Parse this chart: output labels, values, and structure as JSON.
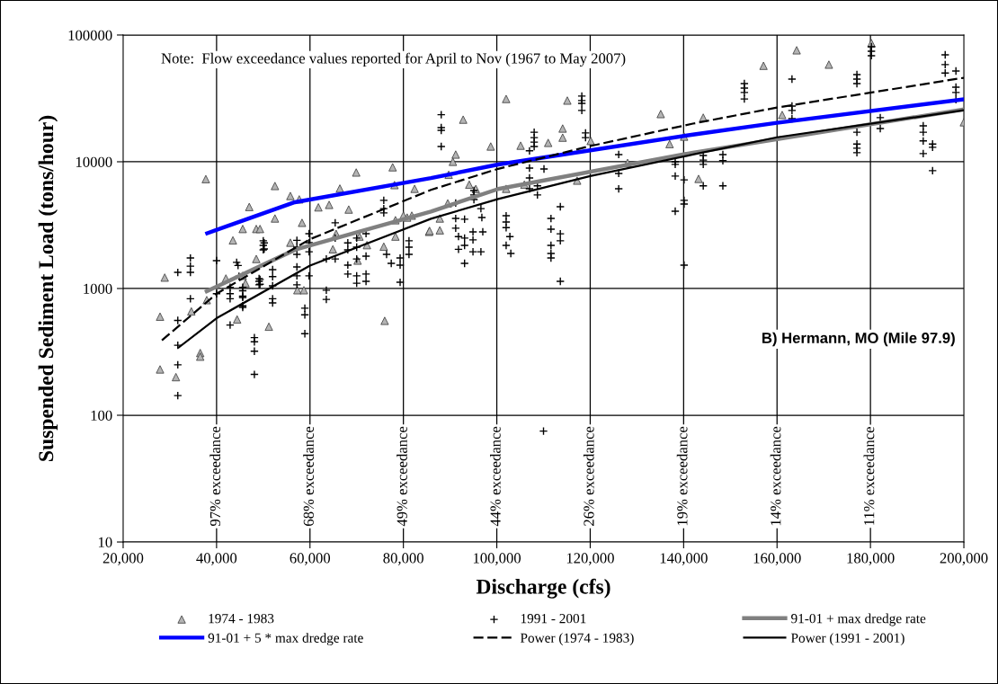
{
  "chart_data": {
    "type": "scatter",
    "xlabel": "Discharge (cfs)",
    "ylabel": "Suspended Sediment Load (tons/hour)",
    "log": "y",
    "grid": "y",
    "legend": "bottom",
    "xlim": [
      20000,
      200000
    ],
    "xticks": [
      {
        "value": 20000,
        "label": "20,000"
      },
      {
        "value": 40000,
        "label": "40,000"
      },
      {
        "value": 60000,
        "label": "60,000"
      },
      {
        "value": 80000,
        "label": "80,000"
      },
      {
        "value": 100000,
        "label": "100,000"
      },
      {
        "value": 120000,
        "label": "120,000"
      },
      {
        "value": 140000,
        "label": "140,000"
      },
      {
        "value": 160000,
        "label": "160,000"
      },
      {
        "value": 180000,
        "label": "180,000"
      },
      {
        "value": 200000,
        "label": "200,000"
      }
    ],
    "ylim": [
      10,
      100000
    ],
    "yticks": [
      10,
      100,
      1000,
      10000,
      100000
    ],
    "annotations": [
      "Note:  Flow exceedance values reported for April to Nov (1967 to May 2007)",
      "B) Hermann, MO (Mile 97.9)"
    ],
    "ref_lines": [
      {
        "axis": "x",
        "value": 40000,
        "label": "97% exceedance",
        "color": "#000000"
      },
      {
        "axis": "x",
        "value": 60000,
        "label": "68% exceedance",
        "color": "#000000"
      },
      {
        "axis": "x",
        "value": 80000,
        "label": "49% exceedance",
        "color": "#000000"
      },
      {
        "axis": "x",
        "value": 100000,
        "label": "44% exceedance",
        "color": "#000000"
      },
      {
        "axis": "x",
        "value": 120000,
        "label": "26% exceedance",
        "color": "#000000"
      },
      {
        "axis": "x",
        "value": 140000,
        "label": "19% exceedance",
        "color": "#000000"
      },
      {
        "axis": "x",
        "value": 160000,
        "label": "14% exceedance",
        "color": "#000000"
      },
      {
        "axis": "x",
        "value": 180000,
        "label": "11% exceedance",
        "color": "#000000"
      }
    ],
    "series": [
      {
        "name": "1974 - 1983",
        "marker": "triangle",
        "color": "#b4b4b4",
        "x": [
          37700,
          28900,
          27900,
          27900,
          31300,
          36500,
          36500,
          34600,
          37900,
          44400,
          47000,
          45600,
          43500,
          48500,
          49300,
          42000,
          48500,
          51200,
          52500,
          55800,
          57700,
          61800,
          64100,
          66400,
          69900,
          77700,
          78100,
          82400,
          68300,
          52500,
          58300,
          55800,
          65600,
          70600,
          72200,
          64900,
          70200,
          75800,
          78300,
          80000,
          81800,
          85500,
          57300,
          58700,
          76000,
          46200,
          45600,
          102000,
          115100,
          135100,
          92800,
          98700,
          105100,
          111000,
          114100,
          114100,
          120100,
          137000,
          140100,
          91200,
          90600,
          89700,
          94100,
          95500,
          102000,
          105900,
          117200,
          128000,
          89500,
          87800,
          85600,
          87800,
          80800,
          78300,
          164200,
          157100,
          171100,
          180200,
          144200,
          161100,
          143200,
          200000
        ],
        "values": [
          7300,
          1220,
          600,
          230,
          200,
          310,
          290,
          660,
          810,
          570,
          4400,
          2950,
          2400,
          2950,
          2950,
          1200,
          1710,
          500,
          6440,
          5370,
          5050,
          4370,
          4570,
          6150,
          8230,
          9050,
          6550,
          6120,
          4200,
          3570,
          3300,
          2300,
          2700,
          2570,
          2200,
          2040,
          1660,
          2140,
          3460,
          3760,
          3760,
          2800,
          970,
          970,
          556,
          1100,
          1260,
          31300,
          30400,
          23800,
          21500,
          13200,
          13400,
          14100,
          18300,
          15500,
          14600,
          13800,
          15800,
          11400,
          10000,
          7900,
          6600,
          6100,
          6120,
          6600,
          7100,
          9800,
          4700,
          3570,
          2850,
          2880,
          3630,
          2570,
          75800,
          57200,
          58400,
          86300,
          22300,
          23400,
          7330,
          20500
        ]
      },
      {
        "name": "1991 - 2001",
        "marker": "cross",
        "color": "#000000",
        "x": [
          31700,
          31700,
          31700,
          31700,
          31700,
          34400,
          34400,
          34400,
          34400,
          40000,
          42900,
          42900,
          42900,
          42900,
          44300,
          44600,
          45600,
          45600,
          45600,
          48100,
          48100,
          48100,
          48100,
          50200,
          50200,
          49300,
          49300,
          50000,
          50000,
          50000,
          40000,
          44800,
          45600,
          45600,
          45600,
          49100,
          49100,
          49100,
          52000,
          52000,
          52000,
          52000,
          52000,
          57200,
          57200,
          57200,
          57200,
          57200,
          57200,
          58900,
          58900,
          58900,
          59800,
          59800,
          59800,
          59800,
          63500,
          63500,
          63500,
          65400,
          65400,
          65400,
          68100,
          68100,
          68100,
          68100,
          70000,
          70000,
          70000,
          70000,
          70000,
          72000,
          72000,
          72000,
          72000,
          75800,
          75800,
          75800,
          76400,
          77400,
          79300,
          79300,
          79300,
          81200,
          81200,
          81200,
          88100,
          88100,
          88100,
          88100,
          91200,
          91200,
          91200,
          91800,
          91800,
          93100,
          93100,
          93100,
          93100,
          94900,
          94900,
          94900,
          95100,
          95100,
          95100,
          96600,
          97000,
          96600,
          96800,
          102000,
          102000,
          102000,
          102800,
          102000,
          103000,
          108000,
          108000,
          108000,
          108000,
          107000,
          107000,
          107000,
          107000,
          110100,
          108700,
          108700,
          111600,
          111600,
          111600,
          111600,
          111600,
          113600,
          113600,
          113600,
          113600,
          118200,
          118200,
          118200,
          118200,
          119000,
          119000,
          126100,
          126100,
          126100,
          138200,
          138200,
          138200,
          140100,
          140100,
          140100,
          140100,
          138200,
          144200,
          144200,
          144200,
          144200,
          148400,
          148400,
          148400,
          153000,
          153000,
          153000,
          153000,
          163200,
          163200,
          163200,
          163200,
          177100,
          177100,
          177100,
          177100,
          177100,
          177100,
          177100,
          180200,
          180200,
          180200,
          182100,
          182100,
          191300,
          191300,
          191300,
          191300,
          193300,
          193300,
          193300,
          196000,
          196000,
          196000,
          198300,
          198300,
          198300,
          198300,
          110000
        ],
        "values": [
          1340,
          560,
          250,
          143,
          357,
          1740,
          1500,
          1340,
          830,
          1660,
          1020,
          910,
          830,
          515,
          1610,
          1520,
          960,
          850,
          710,
          410,
          380,
          320,
          210,
          2290,
          2050,
          1180,
          1080,
          2380,
          2190,
          2020,
          910,
          1250,
          1020,
          870,
          730,
          1200,
          1140,
          1070,
          1410,
          1240,
          1050,
          830,
          770,
          2400,
          2120,
          1860,
          1480,
          1260,
          1070,
          700,
          620,
          440,
          2710,
          2300,
          1950,
          1260,
          1710,
          970,
          820,
          3300,
          2500,
          1710,
          2290,
          2020,
          1530,
          1300,
          2500,
          2120,
          1710,
          1260,
          1100,
          2710,
          1800,
          1300,
          1140,
          4960,
          4270,
          3950,
          1860,
          1580,
          1740,
          1530,
          1120,
          2380,
          2120,
          1860,
          23500,
          18600,
          17700,
          13200,
          4720,
          3570,
          2990,
          2570,
          2040,
          3520,
          2500,
          2190,
          1580,
          2800,
          2420,
          1950,
          5930,
          5470,
          5030,
          1950,
          2800,
          4270,
          3630,
          3750,
          3350,
          3020,
          2570,
          2190,
          1890,
          17100,
          15500,
          14300,
          13200,
          12200,
          8920,
          7450,
          6120,
          8770,
          6460,
          5470,
          3570,
          2940,
          2190,
          1890,
          1740,
          4420,
          2700,
          2380,
          1140,
          33000,
          30400,
          28900,
          25400,
          16900,
          15500,
          11400,
          8090,
          6120,
          9540,
          7710,
          4070,
          7200,
          4960,
          4640,
          1530,
          10000,
          11200,
          10300,
          9540,
          6460,
          11400,
          10200,
          6460,
          41400,
          38100,
          35200,
          31300,
          44900,
          27500,
          25400,
          21900,
          48700,
          44900,
          41400,
          17100,
          13800,
          12800,
          11800,
          80900,
          74500,
          68700,
          22300,
          18300,
          19200,
          17100,
          14600,
          11600,
          13800,
          13000,
          8510,
          69800,
          58400,
          50100,
          52000,
          38800,
          35200,
          30900,
          75
        ]
      },
      {
        "name": "91-01 + max dredge rate",
        "type": "line",
        "marker": "none",
        "line_style": "solid",
        "color": "#808080",
        "x": [
          37900,
          56900,
          85900,
          100300,
          142000,
          200000
        ],
        "values": [
          950,
          2030,
          4050,
          6100,
          11800,
          25900
        ]
      },
      {
        "name": "91-01 + 5 * max dredge rate",
        "type": "line",
        "marker": "none",
        "line_style": "solid",
        "color": "#0000ff",
        "x": [
          38000,
          56500,
          85900,
          100300,
          142000,
          160000,
          200000
        ],
        "values": [
          2730,
          4770,
          7430,
          9520,
          16400,
          20300,
          31100
        ]
      },
      {
        "name": "Power (1974 - 1983)",
        "type": "line",
        "marker": "none",
        "line_style": "dashed",
        "color": "#000000",
        "x": [
          28300,
          40000,
          60000,
          85900,
          100300,
          120000,
          142000,
          160000,
          200000
        ],
        "values": [
          390,
          910,
          2450,
          6000,
          8800,
          13300,
          20000,
          26800,
          46000
        ]
      },
      {
        "name": "Power (1991 - 2001)",
        "type": "line",
        "marker": "none",
        "line_style": "solid",
        "color": "#000000",
        "x": [
          31900,
          40000,
          60000,
          85900,
          100300,
          120000,
          142000,
          160000,
          200000
        ],
        "values": [
          343,
          583,
          1516,
          3550,
          5090,
          7720,
          11400,
          15600,
          25500
        ]
      }
    ]
  }
}
